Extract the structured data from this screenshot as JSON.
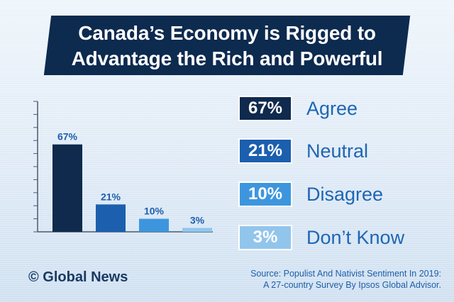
{
  "title": {
    "line1": "Canada’s Economy is Rigged to",
    "line2": "Advantage the Rich and Powerful"
  },
  "colors": {
    "agree": "#0f2a4d",
    "neutral": "#1b5fae",
    "disagree": "#3d96dd",
    "dont_know": "#92c5ec",
    "title_bg": "#0d2a4f",
    "label_text": "#1e66b3"
  },
  "chart_data": {
    "type": "bar",
    "categories": [
      "Agree",
      "Neutral",
      "Disagree",
      "Don’t Know"
    ],
    "values": [
      67,
      21,
      10,
      3
    ],
    "data_labels": [
      "67%",
      "21%",
      "10%",
      "3%"
    ],
    "ylim": [
      0,
      100
    ],
    "title": "Canada’s Economy is Rigged to Advantage the Rich and Powerful",
    "xlabel": "",
    "ylabel": "",
    "legend_position": "right",
    "grid": false
  },
  "legend": [
    {
      "value": "67%",
      "label": "Agree"
    },
    {
      "value": "21%",
      "label": "Neutral"
    },
    {
      "value": "10%",
      "label": "Disagree"
    },
    {
      "value": "3%",
      "label": "Don’t Know"
    }
  ],
  "footer": {
    "logo": "© Global News",
    "source_line1": "Source: Populist And Nativist Sentiment In 2019:",
    "source_line2": "A 27-country Survey By Ipsos Global Advisor."
  }
}
